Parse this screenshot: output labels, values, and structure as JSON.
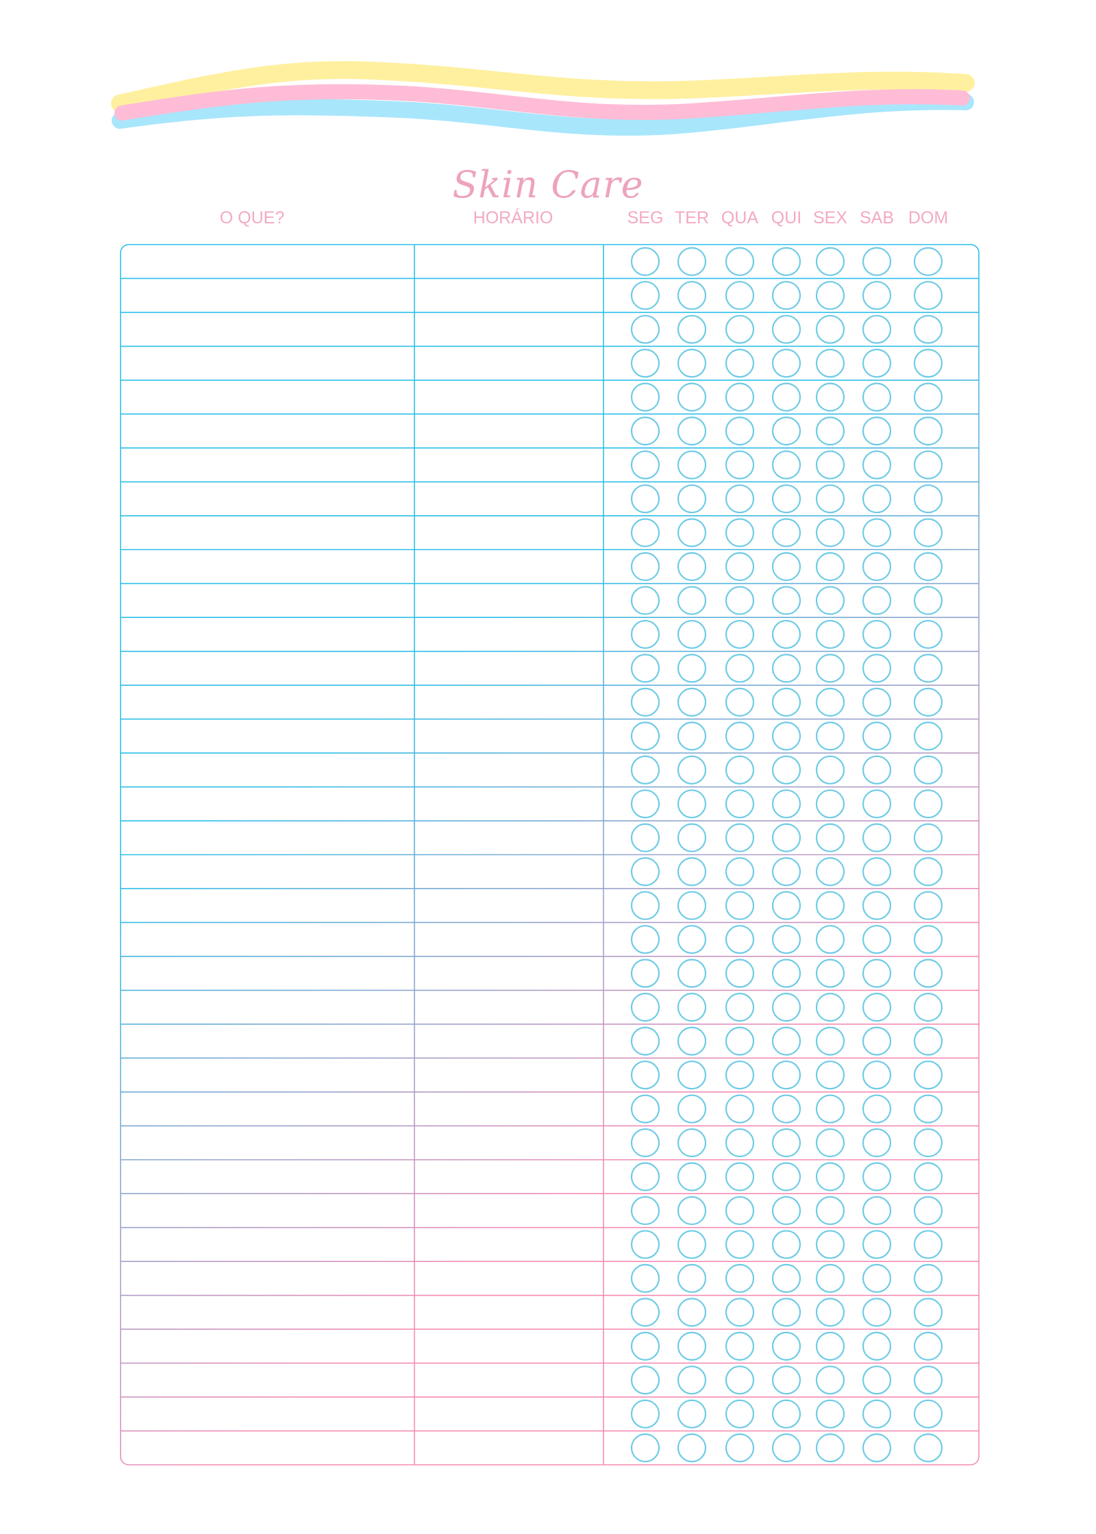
{
  "title": "Skin Care",
  "headers": {
    "what": "O QUE?",
    "time": "HORÁRIO"
  },
  "days": [
    "SEG",
    "TER",
    "QUA",
    "QUI",
    "SEX",
    "SAB",
    "DOM"
  ],
  "colors": {
    "title": "#eda3bd",
    "header": "#f3a9c4",
    "line_blue": "#2cbfe8",
    "line_pink": "#f58cb5",
    "circle": "#6fcbe6",
    "wave_yellow": "#fff0a0",
    "wave_pink": "#ffbcd6",
    "wave_blue": "#a8e6fc"
  }
}
